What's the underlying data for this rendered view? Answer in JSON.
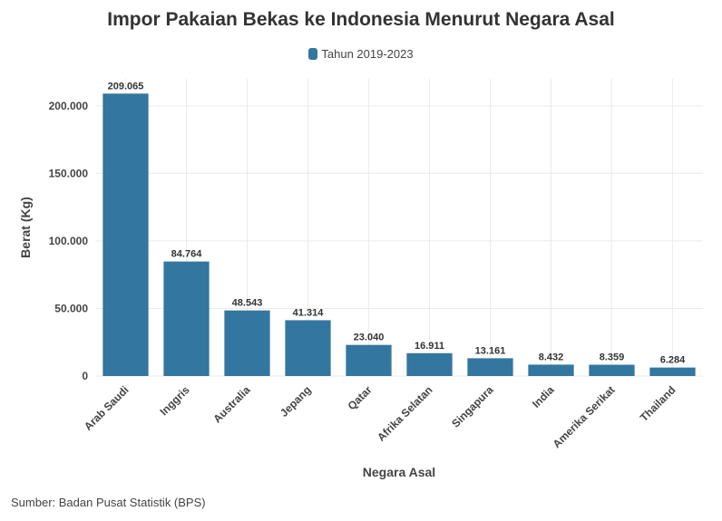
{
  "chart_data": {
    "type": "bar",
    "title": "Impor Pakaian Bekas ke Indonesia Menurut Negara Asal",
    "xlabel": "Negara Asal",
    "ylabel": "Berat (Kg)",
    "categories": [
      "Arab Saudi",
      "Inggris",
      "Australia",
      "Jepang",
      "Qatar",
      "Afrika Selatan",
      "Singapura",
      "India",
      "Amerika Serikat",
      "Thailand"
    ],
    "series": [
      {
        "name": "Tahun 2019-2023",
        "color": "#33769f",
        "values": [
          209065,
          84764,
          48543,
          41314,
          23040,
          16911,
          13161,
          8432,
          8359,
          6284
        ],
        "labels": [
          "209.065",
          "84.764",
          "48.543",
          "41.314",
          "23.040",
          "16.911",
          "13.161",
          "8.432",
          "8.359",
          "6.284"
        ]
      }
    ],
    "ylim": [
      0,
      220000
    ],
    "yticks": [
      0,
      50000,
      100000,
      150000,
      200000
    ],
    "ytick_labels": [
      "0",
      "50.000",
      "100.000",
      "150.000",
      "200.000"
    ],
    "grid": true,
    "legend_position": "top-center"
  },
  "source_note": "Sumber: Badan Pusat Statistik (BPS)"
}
